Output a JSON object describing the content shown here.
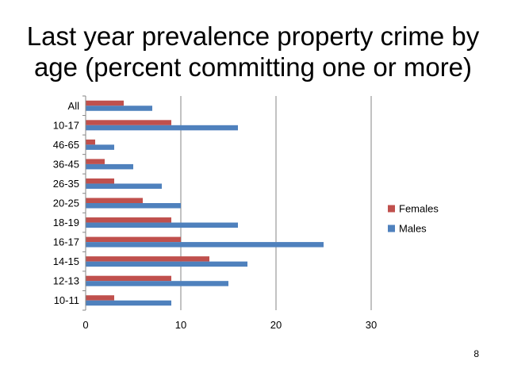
{
  "slide": {
    "title_line1": "Last year prevalence property crime by",
    "title_line2": "age (percent committing one or more)",
    "page_number": "8"
  },
  "chart_data": {
    "type": "bar",
    "orientation": "horizontal",
    "categories": [
      "All",
      "10-17",
      "46-65",
      "36-45",
      "26-35",
      "20-25",
      "18-19",
      "16-17",
      "14-15",
      "12-13",
      "10-11"
    ],
    "series": [
      {
        "name": "Females",
        "color": "#c0504d",
        "values": [
          4,
          9,
          1,
          2,
          3,
          6,
          9,
          10,
          13,
          9,
          3
        ]
      },
      {
        "name": "Males",
        "color": "#4f81bd",
        "values": [
          7,
          16,
          3,
          5,
          8,
          10,
          16,
          25,
          17,
          15,
          9
        ]
      }
    ],
    "xlim": [
      0,
      30
    ],
    "xticks": [
      0,
      10,
      20,
      30
    ],
    "grid": true,
    "legend_position": "right",
    "title": "",
    "xlabel": "",
    "ylabel": ""
  }
}
